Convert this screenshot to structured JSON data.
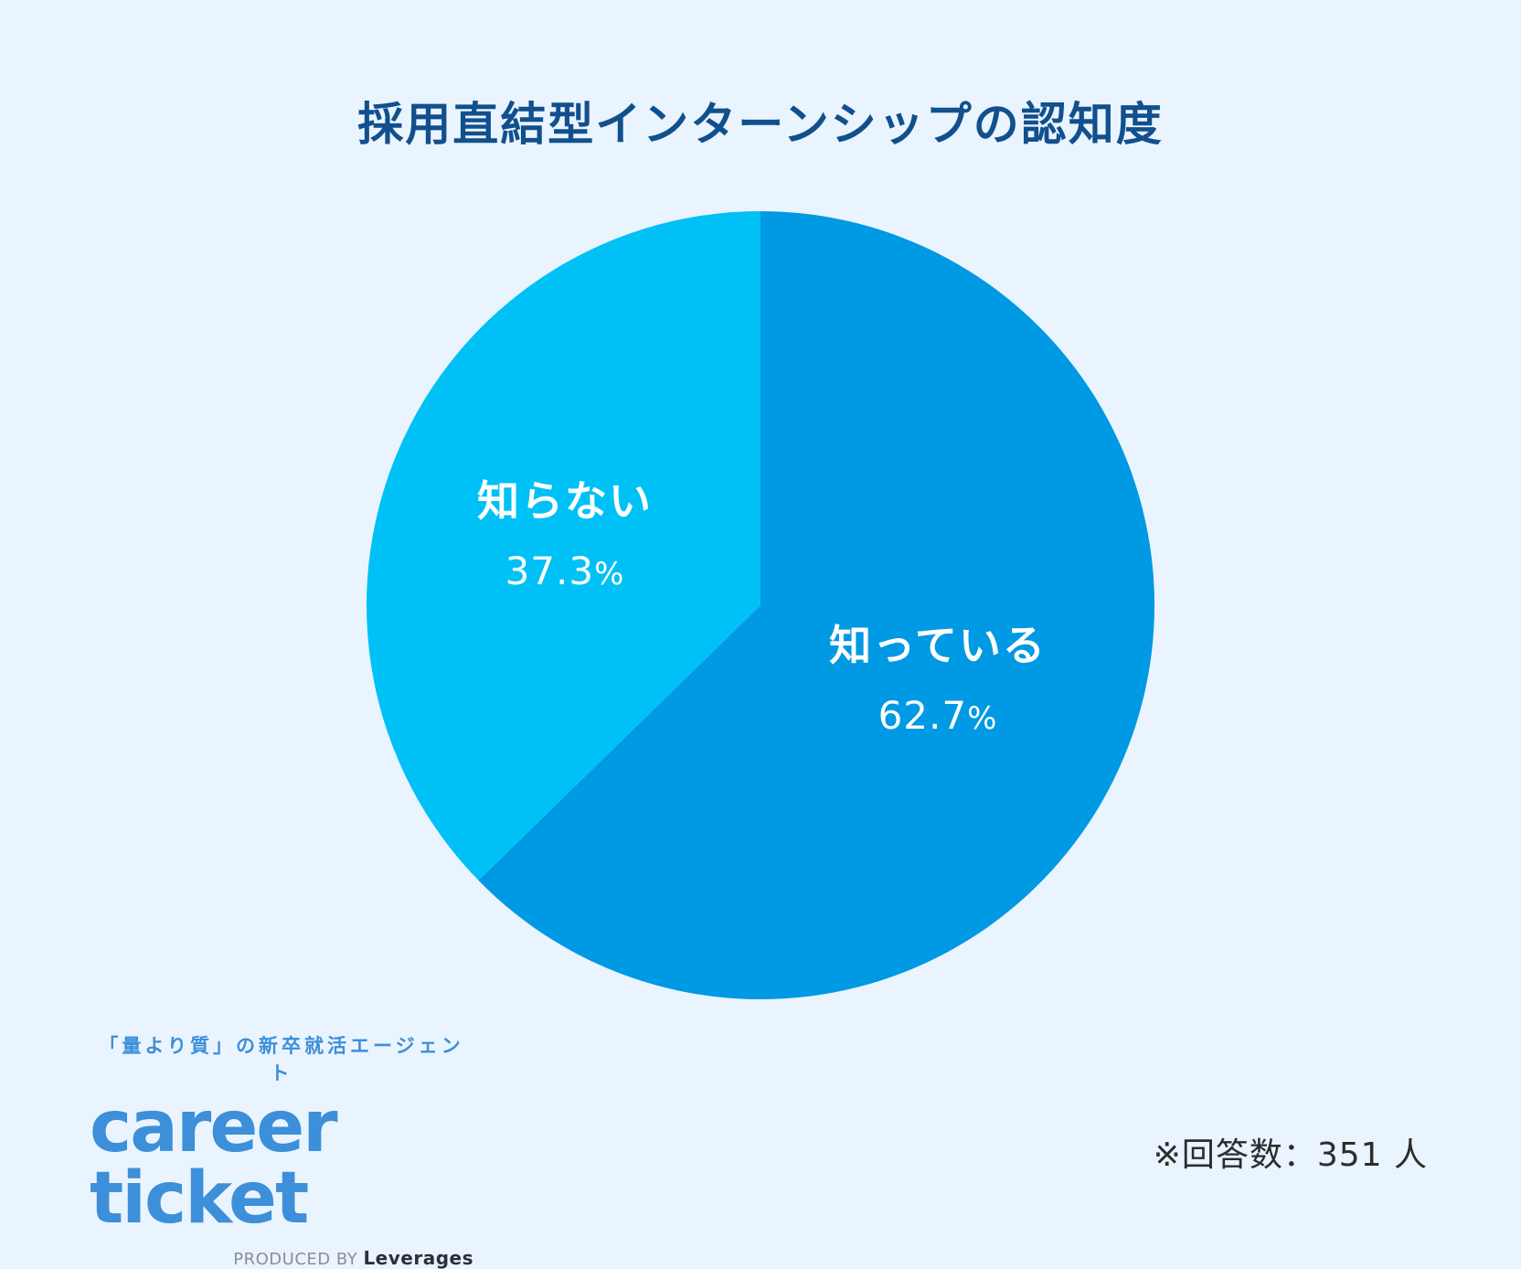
{
  "chart_data": {
    "type": "pie",
    "title": "採用直結型インターンシップの認知度",
    "slices": [
      {
        "label": "知っている",
        "value": 62.7,
        "display": "62.7",
        "unit": "%",
        "color": "#0099e3"
      },
      {
        "label": "知らない",
        "value": 37.3,
        "display": "37.3",
        "unit": "%",
        "color": "#00c1f5"
      }
    ],
    "start": "12 o'clock",
    "direction": "clockwise"
  },
  "branding": {
    "tagline": "「量より質」の新卒就活エージェント",
    "logo_text": "career ticket",
    "produced_by": "PRODUCED BY",
    "company": "Leverages",
    "logo_color": "#3d8fd9"
  },
  "footnote": "※回答数：351 人",
  "background": "#eaf4fe",
  "title_color": "#11508d"
}
